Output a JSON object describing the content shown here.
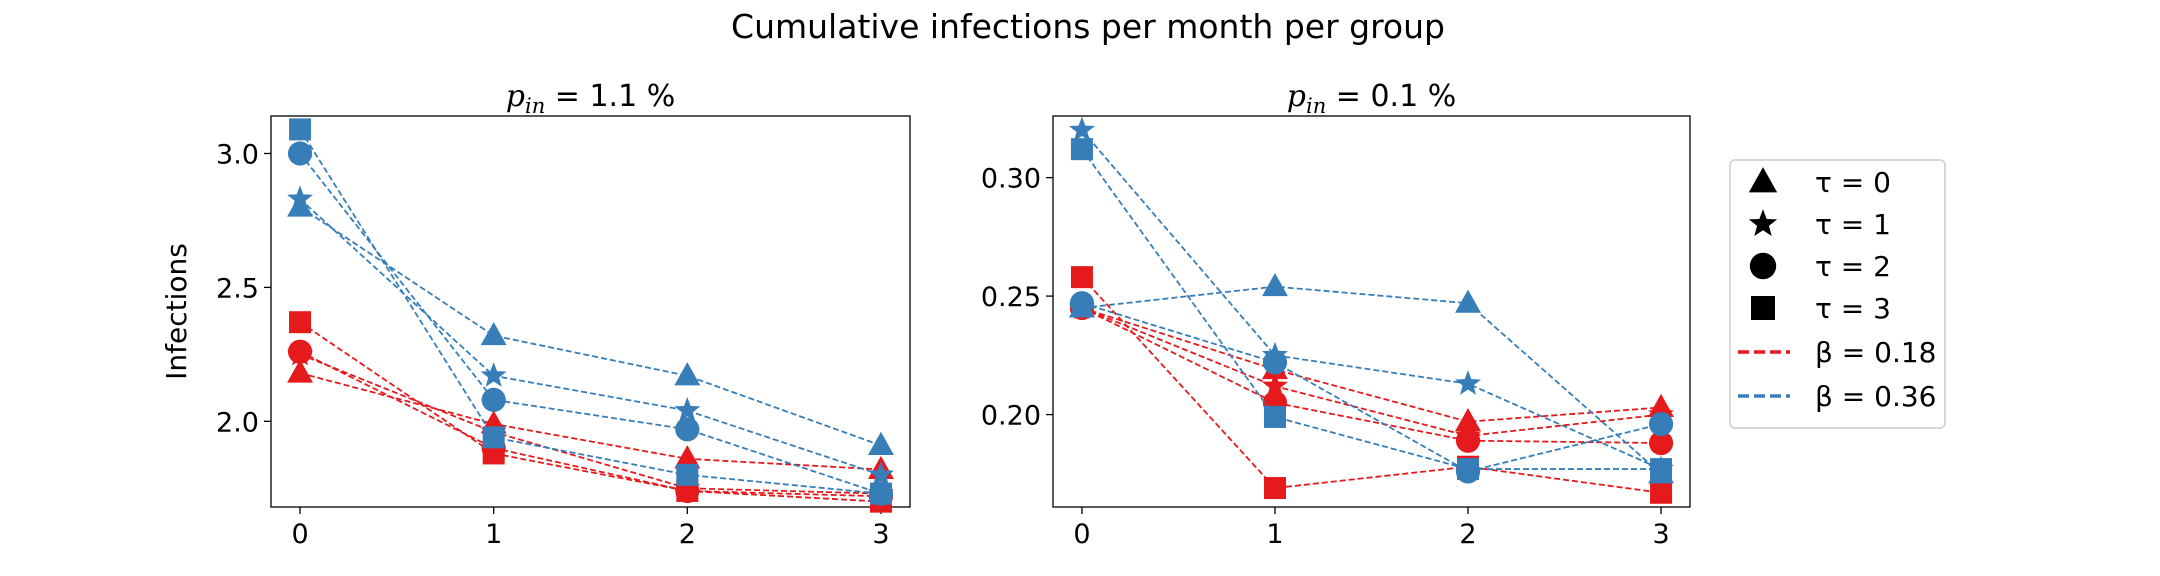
{
  "figure": {
    "title": "Cumulative infections per month per group"
  },
  "colors": {
    "beta_low": "#e41a1c",
    "beta_high": "#377eb8",
    "axes": "#000000"
  },
  "legend": {
    "placement": "right-outside",
    "markers": [
      {
        "label": "τ = 0",
        "symbol": "triangle"
      },
      {
        "label": "τ = 1",
        "symbol": "star"
      },
      {
        "label": "τ = 2",
        "symbol": "circle"
      },
      {
        "label": "τ = 3",
        "symbol": "square"
      }
    ],
    "lines": [
      {
        "label": "β = 0.18",
        "color_key": "beta_low"
      },
      {
        "label": "β = 0.36",
        "color_key": "beta_high"
      }
    ]
  },
  "chart_data": [
    {
      "type": "line",
      "title": "p",
      "title_sub": "in",
      "title_rest": " = 1.1 %",
      "xlabel": "",
      "ylabel": "Infections",
      "x": [
        0,
        1,
        2,
        3
      ],
      "xticks": [
        "0",
        "1",
        "2",
        "3"
      ],
      "yticks": [
        2.0,
        2.5,
        3.0
      ],
      "ytick_labels": [
        "2.0",
        "2.5",
        "3.0"
      ],
      "xlim": [
        -0.15,
        3.15
      ],
      "ylim": [
        1.68,
        3.14
      ],
      "grid": false,
      "series": [
        {
          "beta": "0.18",
          "tau": 0,
          "values": [
            2.18,
            1.99,
            1.86,
            1.82
          ]
        },
        {
          "beta": "0.18",
          "tau": 1,
          "values": [
            2.25,
            1.96,
            1.75,
            1.73
          ]
        },
        {
          "beta": "0.18",
          "tau": 2,
          "values": [
            2.26,
            1.9,
            1.74,
            1.72
          ]
        },
        {
          "beta": "0.18",
          "tau": 3,
          "values": [
            2.37,
            1.88,
            1.74,
            1.7
          ]
        },
        {
          "beta": "0.36",
          "tau": 0,
          "values": [
            2.8,
            2.32,
            2.17,
            1.91
          ]
        },
        {
          "beta": "0.36",
          "tau": 1,
          "values": [
            2.83,
            2.17,
            2.04,
            1.8
          ]
        },
        {
          "beta": "0.36",
          "tau": 2,
          "values": [
            3.0,
            2.08,
            1.97,
            1.73
          ]
        },
        {
          "beta": "0.36",
          "tau": 3,
          "values": [
            3.09,
            1.94,
            1.8,
            1.73
          ]
        }
      ]
    },
    {
      "type": "line",
      "title": "p",
      "title_sub": "in",
      "title_rest": " = 0.1 %",
      "xlabel": "",
      "ylabel": "",
      "x": [
        0,
        1,
        2,
        3
      ],
      "xticks": [
        "0",
        "1",
        "2",
        "3"
      ],
      "yticks": [
        0.2,
        0.25,
        0.3
      ],
      "ytick_labels": [
        "0.20",
        "0.25",
        "0.30"
      ],
      "xlim": [
        -0.15,
        3.15
      ],
      "ylim": [
        0.161,
        0.326
      ],
      "grid": false,
      "series": [
        {
          "beta": "0.18",
          "tau": 0,
          "values": [
            0.245,
            0.219,
            0.197,
            0.203
          ]
        },
        {
          "beta": "0.18",
          "tau": 1,
          "values": [
            0.245,
            0.212,
            0.191,
            0.2
          ]
        },
        {
          "beta": "0.18",
          "tau": 2,
          "values": [
            0.245,
            0.205,
            0.189,
            0.188
          ]
        },
        {
          "beta": "0.18",
          "tau": 3,
          "values": [
            0.258,
            0.169,
            0.178,
            0.167
          ]
        },
        {
          "beta": "0.36",
          "tau": 0,
          "values": [
            0.245,
            0.254,
            0.247,
            0.175
          ]
        },
        {
          "beta": "0.36",
          "tau": 1,
          "values": [
            0.32,
            0.225,
            0.213,
            0.177
          ]
        },
        {
          "beta": "0.36",
          "tau": 2,
          "values": [
            0.247,
            0.222,
            0.176,
            0.196
          ]
        },
        {
          "beta": "0.36",
          "tau": 3,
          "values": [
            0.312,
            0.199,
            0.177,
            0.177
          ]
        }
      ]
    }
  ]
}
